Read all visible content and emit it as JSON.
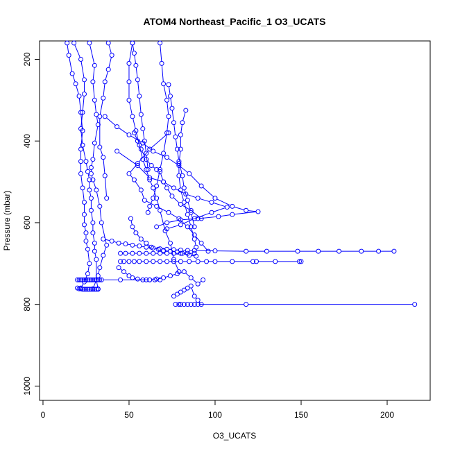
{
  "chart_data": {
    "type": "line",
    "title": "ATOM4 Northeast_Pacific_1 O3_UCATS",
    "xlabel": "O3_UCATS",
    "ylabel": "Pressure (mbar)",
    "xlim": [
      -2,
      225
    ],
    "ylim": [
      1035,
      155
    ],
    "y_axis_inverted": true,
    "xticks": [
      0,
      50,
      100,
      150,
      200
    ],
    "yticks": [
      200,
      400,
      600,
      800,
      1000
    ],
    "series_color": "#0000ff",
    "marker": "open-circle",
    "grid": false,
    "legend": "none",
    "series": [
      {
        "x": [
          14,
          15,
          17,
          19,
          21,
          22,
          23,
          22,
          22,
          22,
          23,
          24,
          24,
          24,
          25,
          25,
          26,
          27,
          26,
          24,
          22,
          21
        ],
        "y": [
          160,
          190,
          235,
          260,
          290,
          330,
          375,
          420,
          450,
          480,
          515,
          550,
          580,
          605,
          625,
          645,
          665,
          700,
          725,
          745,
          760,
          762
        ]
      },
      {
        "x": [
          18,
          22,
          24,
          24,
          23,
          22,
          23,
          25,
          26,
          27,
          27,
          28,
          28,
          29,
          29,
          30,
          30,
          31,
          31,
          32
        ],
        "y": [
          160,
          200,
          250,
          285,
          330,
          370,
          410,
          450,
          475,
          495,
          520,
          540,
          570,
          600,
          625,
          650,
          670,
          690,
          740,
          762
        ]
      },
      {
        "x": [
          27,
          30,
          29,
          30,
          31,
          32,
          30,
          29,
          28,
          28,
          29,
          31,
          33,
          34,
          37,
          35,
          33,
          32,
          29
        ],
        "y": [
          160,
          215,
          255,
          300,
          335,
          360,
          405,
          445,
          465,
          480,
          495,
          520,
          560,
          600,
          655,
          680,
          710,
          730,
          762
        ]
      },
      {
        "x": [
          38,
          40,
          38,
          36,
          35,
          33,
          33,
          35,
          36,
          37
        ],
        "y": [
          160,
          190,
          225,
          255,
          295,
          340,
          415,
          440,
          485,
          540
        ]
      },
      {
        "x": [
          52,
          50,
          50,
          50,
          52,
          54,
          56,
          58,
          60,
          62,
          64,
          66,
          68,
          71,
          74,
          76,
          79
        ],
        "y": [
          160,
          210,
          255,
          300,
          340,
          375,
          410,
          445,
          470,
          495,
          515,
          540,
          570,
          620,
          650,
          690,
          720
        ]
      },
      {
        "x": [
          68,
          69,
          70,
          72,
          73,
          72,
          70,
          68,
          66,
          64,
          62,
          61
        ],
        "y": [
          160,
          210,
          260,
          300,
          340,
          380,
          430,
          470,
          510,
          540,
          560,
          575
        ]
      },
      {
        "x": [
          52,
          53,
          54,
          55,
          56,
          57,
          58,
          59,
          60,
          61
        ],
        "y": [
          160,
          185,
          215,
          250,
          290,
          335,
          370,
          400,
          430,
          470
        ]
      },
      {
        "x": [
          36,
          43,
          50,
          58,
          64,
          72,
          79,
          85,
          92,
          100,
          110,
          118,
          125,
          110,
          102,
          90,
          80,
          72,
          66
        ],
        "y": [
          340,
          365,
          385,
          405,
          425,
          440,
          460,
          480,
          510,
          540,
          560,
          570,
          573,
          580,
          585,
          590,
          593,
          600,
          610
        ]
      },
      {
        "x": [
          43,
          55,
          62,
          70,
          76,
          83,
          90,
          98,
          107,
          98,
          88,
          80,
          72
        ],
        "y": [
          425,
          460,
          490,
          500,
          515,
          530,
          540,
          550,
          562,
          575,
          590,
          605,
          615
        ]
      },
      {
        "x": [
          73,
          74,
          75,
          76,
          77,
          78,
          79,
          81,
          82,
          84,
          86,
          88
        ],
        "y": [
          262,
          290,
          320,
          355,
          390,
          420,
          450,
          485,
          515,
          545,
          575,
          610
        ]
      },
      {
        "x": [
          83,
          81,
          80,
          80,
          79,
          79,
          80,
          82,
          84,
          86,
          88,
          89
        ],
        "y": [
          325,
          355,
          385,
          420,
          455,
          485,
          520,
          550,
          580,
          610,
          640,
          660
        ]
      },
      {
        "x": [
          73,
          62,
          55,
          50,
          53,
          57,
          59,
          66,
          73,
          79,
          84,
          88,
          92,
          96
        ],
        "y": [
          380,
          420,
          455,
          480,
          495,
          520,
          545,
          560,
          575,
          590,
          610,
          630,
          650,
          670
        ]
      },
      {
        "x": [
          53,
          55,
          57,
          60,
          63,
          66,
          68,
          70,
          72,
          75,
          80,
          86,
          92
        ],
        "y": [
          380,
          400,
          420,
          445,
          460,
          470,
          475,
          500,
          515,
          535,
          555,
          570,
          590
        ]
      },
      {
        "x": [
          51,
          52,
          54,
          57,
          60,
          63,
          67,
          70,
          74,
          78,
          81,
          85,
          89
        ],
        "y": [
          590,
          610,
          625,
          640,
          650,
          660,
          665,
          668,
          670,
          672,
          675,
          680,
          682
        ]
      },
      {
        "x": [
          35,
          40,
          44,
          48,
          52,
          56,
          60,
          64,
          68,
          72,
          76,
          80,
          84,
          88,
          100,
          118,
          130,
          148,
          160,
          172,
          185,
          195,
          204
        ],
        "y": [
          640,
          645,
          650,
          652,
          655,
          657,
          660,
          662,
          664,
          665,
          666,
          667,
          668,
          668,
          669,
          670,
          670,
          670,
          670,
          670,
          670,
          670,
          670
        ]
      },
      {
        "x": [
          45,
          47,
          50,
          53,
          56,
          60,
          64,
          68,
          72,
          76,
          80,
          85,
          90,
          95,
          100,
          110,
          122,
          124,
          135,
          149,
          150
        ],
        "y": [
          695,
          695,
          695,
          695,
          695,
          695,
          695,
          695,
          695,
          695,
          695,
          695,
          695,
          695,
          695,
          695,
          695,
          695,
          695,
          695,
          695
        ]
      },
      {
        "x": [
          45,
          48,
          52,
          56,
          60,
          64,
          68,
          72,
          76,
          80,
          84,
          88
        ],
        "y": [
          675,
          675,
          675,
          675,
          675,
          675,
          675,
          675,
          675,
          675,
          675,
          675
        ]
      },
      {
        "x": [
          20,
          21,
          22,
          23,
          24,
          25,
          26,
          27,
          28,
          29,
          30,
          31,
          32,
          33,
          34,
          45,
          60,
          62,
          65,
          68
        ],
        "y": [
          740,
          740,
          740,
          740,
          740,
          740,
          740,
          740,
          740,
          740,
          740,
          740,
          740,
          740,
          740,
          740,
          740,
          740,
          740,
          740
        ]
      },
      {
        "x": [
          20,
          22,
          23,
          24,
          25,
          26,
          27,
          28,
          29,
          30,
          31,
          32
        ],
        "y": [
          760,
          762,
          763,
          763,
          763,
          763,
          763,
          763,
          763,
          763,
          763,
          763
        ]
      },
      {
        "x": [
          44,
          47,
          50,
          52,
          55,
          58,
          62,
          66,
          70,
          74,
          78,
          82,
          86,
          90,
          93
        ],
        "y": [
          710,
          720,
          730,
          735,
          738,
          740,
          740,
          738,
          735,
          730,
          725,
          720,
          735,
          750,
          740
        ]
      },
      {
        "x": [
          77,
          79,
          80,
          82,
          84,
          86,
          88,
          90,
          118,
          216
        ],
        "y": [
          800,
          800,
          800,
          800,
          800,
          800,
          800,
          800,
          800,
          800
        ]
      },
      {
        "x": [
          76,
          78,
          80,
          82,
          84,
          86,
          88,
          90,
          92
        ],
        "y": [
          780,
          775,
          770,
          765,
          760,
          755,
          780,
          790,
          800
        ]
      }
    ]
  }
}
